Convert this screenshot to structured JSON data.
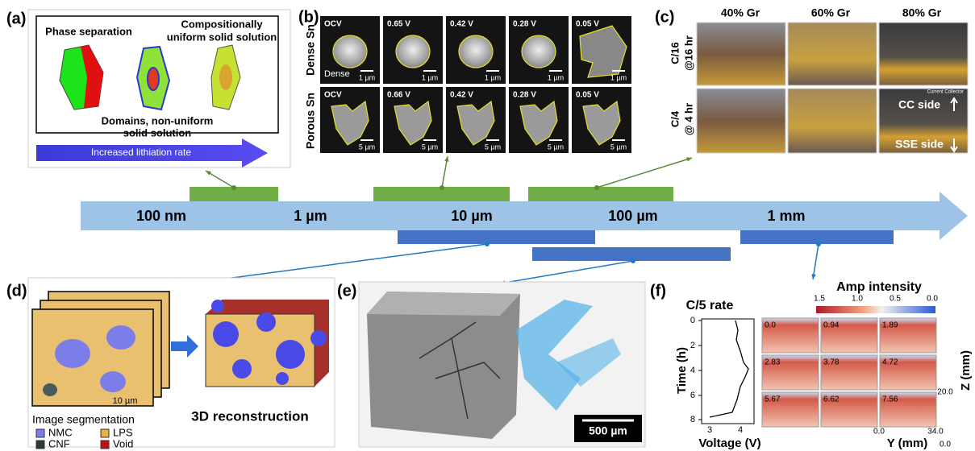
{
  "panel_labels": [
    "(a)",
    "(b)",
    "(c)",
    "(d)",
    "(e)",
    "(f)"
  ],
  "a": {
    "top_left": "Phase separation",
    "top_right": [
      "Compositionally",
      "uniform solid solution"
    ],
    "bottom": [
      "Domains, non-uniform",
      "solid solution"
    ],
    "arrow": "Increased lithiation rate"
  },
  "b": {
    "rows": [
      "Dense Sn",
      "Porous Sn"
    ],
    "tag": "Dense",
    "tiles": [
      [
        {
          "label": "OCV",
          "scale": "1 µm"
        },
        {
          "label": "0.65 V",
          "scale": "1 µm"
        },
        {
          "label": "0.42 V",
          "scale": "1 µm"
        },
        {
          "label": "0.28 V",
          "scale": "1 µm"
        },
        {
          "label": "0.05 V",
          "scale": "1 µm"
        }
      ],
      [
        {
          "label": "OCV",
          "scale": "5 µm"
        },
        {
          "label": "0.66 V",
          "scale": "5 µm"
        },
        {
          "label": "0.42 V",
          "scale": "5 µm"
        },
        {
          "label": "0.28 V",
          "scale": "5 µm"
        },
        {
          "label": "0.05 V",
          "scale": "5 µm"
        }
      ]
    ]
  },
  "c": {
    "columns": [
      "40% Gr",
      "60% Gr",
      "80% Gr"
    ],
    "rows": [
      [
        "C/16",
        "@16 hr"
      ],
      [
        "C/4",
        "@ 4 hr"
      ]
    ],
    "collector": "Current Collector",
    "top_side": "CC side",
    "bottom_side": "SSE side"
  },
  "timeline": {
    "scales": [
      "100 nm",
      "1 µm",
      "10 µm",
      "100 µm",
      "1 mm"
    ]
  },
  "d": {
    "scale": "10 µm",
    "segmentation": "Image segmentation",
    "legend": [
      "NMC",
      "LPS",
      "CNF",
      "Void"
    ],
    "reconstruction": "3D reconstruction"
  },
  "e": {
    "scale": "500 µm"
  },
  "f": {
    "title": "C/5 rate",
    "colorbar_title": "Amp intensity",
    "colorbar_ticks": [
      "1.5",
      "1.0",
      "0.5",
      "0.0"
    ],
    "time_label": "Time (h)",
    "time_ticks": [
      "0",
      "2",
      "4",
      "6",
      "8"
    ],
    "voltage_label": "Voltage (V)",
    "voltage_ticks": [
      "3",
      "4"
    ],
    "tile_times": [
      "0.0",
      "0.94",
      "1.89",
      "2.83",
      "3.78",
      "4.72",
      "5.67",
      "6.62",
      "7.56"
    ],
    "z_label": "Z (mm)",
    "z_ticks": [
      "20.0",
      "0.0"
    ],
    "y_label": "Y (mm)",
    "y_ticks": [
      "0.0",
      "34.0"
    ]
  }
}
